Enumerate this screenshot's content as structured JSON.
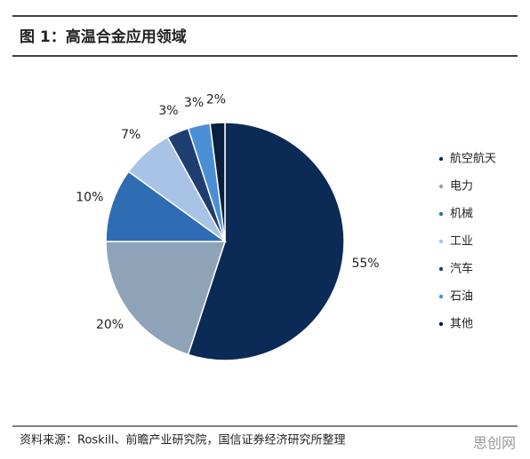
{
  "chart_data": {
    "type": "pie",
    "title": "图 1：高温合金应用领域",
    "categories": [
      "航空航天",
      "电力",
      "机械",
      "工业",
      "汽车",
      "石油",
      "其他"
    ],
    "values": [
      55,
      20,
      10,
      7,
      3,
      3,
      2
    ],
    "value_labels": [
      "55%",
      "20%",
      "10%",
      "7%",
      "3%",
      "3%",
      "2%"
    ],
    "colors": [
      "#0b2a55",
      "#8fa3b8",
      "#2e6db4",
      "#a8c3e6",
      "#1f3e70",
      "#4a8fd6",
      "#0a1e3d"
    ],
    "legend": "right",
    "source": "资料来源：Roskill、前瞻产业研究院，国信证券经济研究所整理"
  },
  "watermark": "思创网"
}
